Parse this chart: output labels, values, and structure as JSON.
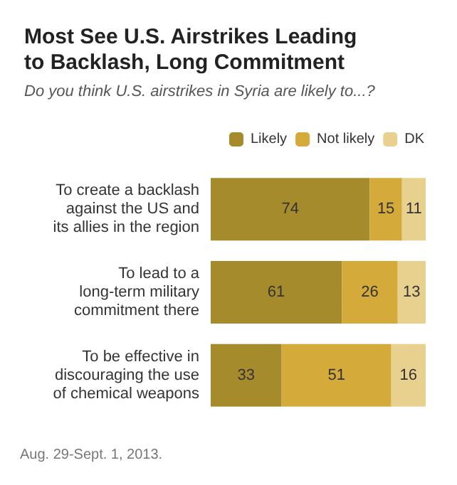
{
  "chart_data": {
    "type": "bar",
    "orientation": "horizontal",
    "stacked": true,
    "data_labels": true,
    "legend": "top right",
    "title": "Most See U.S. Airstrikes Leading\nto Backlash, Long Commitment",
    "subtitle": "Do you think U.S. airstrikes in Syria are likely to...?",
    "categories": [
      "To create a backlash\nagainst the US and\nits allies in the region",
      "To lead to a\nlong-term military\ncommitment there",
      "To be effective in\ndiscouraging the use\nof chemical weapons"
    ],
    "series": [
      {
        "name": "Likely",
        "color": "#a58b2c",
        "values": [
          74,
          61,
          33
        ]
      },
      {
        "name": "Not likely",
        "color": "#d4aa3b",
        "values": [
          15,
          26,
          51
        ]
      },
      {
        "name": "DK",
        "color": "#e8d08e",
        "values": [
          11,
          13,
          16
        ]
      }
    ],
    "annotations": [
      "Aug. 29-Sept. 1, 2013."
    ]
  }
}
